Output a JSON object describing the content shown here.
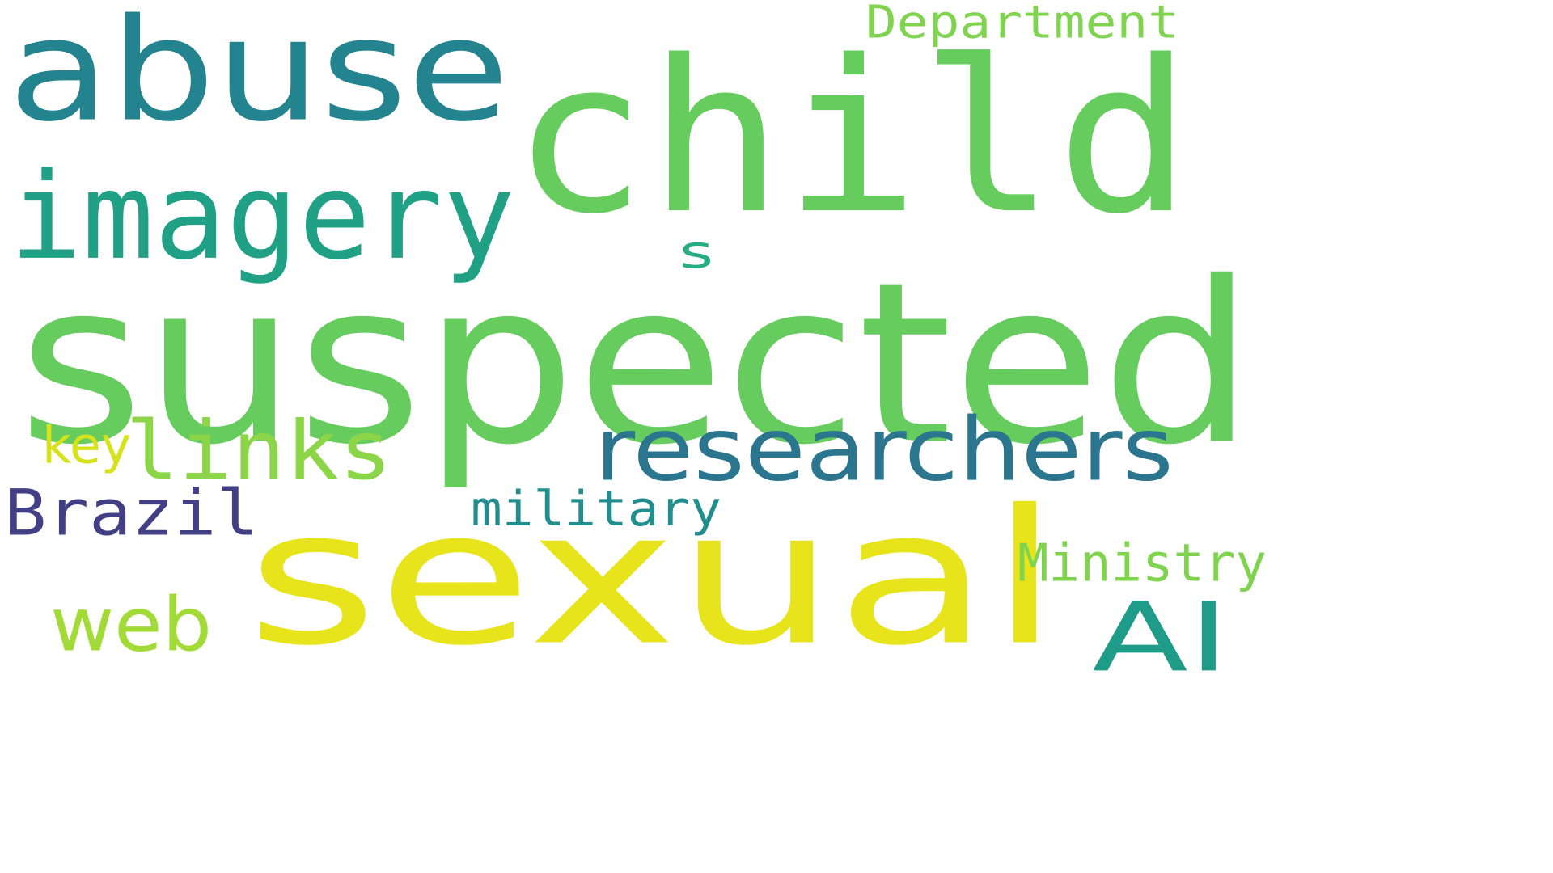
{
  "wordcloud": {
    "background": "#ffffff",
    "words": [
      {
        "text": "suspected",
        "color": "#66cc5e"
      },
      {
        "text": "child",
        "color": "#66cc5e"
      },
      {
        "text": "sexual",
        "color": "#e8e41b"
      },
      {
        "text": "abuse",
        "color": "#23838e"
      },
      {
        "text": "imagery",
        "color": "#20a186"
      },
      {
        "text": "researchers",
        "color": "#2b768e"
      },
      {
        "text": "links",
        "color": "#8dd548"
      },
      {
        "text": "Brazil",
        "color": "#423f85"
      },
      {
        "text": "AI",
        "color": "#1f9c89"
      },
      {
        "text": "Ministry",
        "color": "#7fd34e"
      },
      {
        "text": "Department",
        "color": "#7fd34e"
      },
      {
        "text": "web",
        "color": "#a2da37"
      },
      {
        "text": "military",
        "color": "#218e8d"
      },
      {
        "text": "key",
        "color": "#d8e219"
      },
      {
        "text": "s",
        "color": "#26ad81"
      }
    ]
  }
}
